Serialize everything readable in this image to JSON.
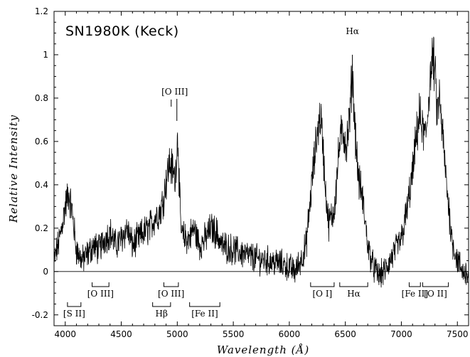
{
  "chart_data": {
    "type": "line",
    "title": "SN1980K (Keck)",
    "xlabel": "Wavelength (Å)",
    "ylabel": "Relative Intensity",
    "xlim": [
      3900,
      7600
    ],
    "ylim": [
      -0.25,
      1.2
    ],
    "xticks": [
      4000,
      4500,
      5000,
      5500,
      6000,
      6500,
      7000,
      7500
    ],
    "yticks": [
      -0.2,
      0,
      0.2,
      0.4,
      0.6,
      0.8,
      1,
      1.2
    ],
    "zero_line": true,
    "grid": false,
    "series": [
      {
        "x": [
          3900,
          3950,
          4000,
          4030,
          4060,
          4100,
          4150,
          4200,
          4250,
          4300,
          4350,
          4400,
          4450,
          4500,
          4550,
          4600,
          4650,
          4700,
          4750,
          4800,
          4850,
          4880,
          4900,
          4930,
          4960,
          4980,
          5000,
          5007,
          5015,
          5030,
          5050,
          5100,
          5150,
          5200,
          5250,
          5300,
          5350,
          5400,
          5500,
          5600,
          5700,
          5800,
          5900,
          6000,
          6050,
          6100,
          6150,
          6200,
          6230,
          6260,
          6280,
          6300,
          6320,
          6350,
          6400,
          6450,
          6480,
          6510,
          6540,
          6563,
          6580,
          6600,
          6620,
          6650,
          6680,
          6700,
          6750,
          6800,
          6850,
          6900,
          6950,
          7000,
          7050,
          7100,
          7130,
          7160,
          7190,
          7220,
          7250,
          7280,
          7300,
          7320,
          7340,
          7370,
          7400,
          7450,
          7500,
          7550,
          7600
        ],
        "y": [
          0.05,
          0.15,
          0.3,
          0.36,
          0.28,
          0.1,
          0.05,
          0.08,
          0.12,
          0.1,
          0.15,
          0.18,
          0.12,
          0.15,
          0.2,
          0.12,
          0.15,
          0.18,
          0.2,
          0.25,
          0.28,
          0.35,
          0.42,
          0.5,
          0.47,
          0.42,
          0.6,
          0.62,
          0.45,
          0.2,
          0.16,
          0.15,
          0.2,
          0.12,
          0.15,
          0.2,
          0.18,
          0.12,
          0.1,
          0.08,
          0.06,
          0.05,
          0.04,
          0.02,
          0.0,
          0.05,
          0.12,
          0.4,
          0.55,
          0.68,
          0.72,
          0.58,
          0.4,
          0.22,
          0.28,
          0.6,
          0.65,
          0.58,
          0.72,
          0.93,
          0.72,
          0.55,
          0.42,
          0.35,
          0.22,
          0.12,
          0.02,
          -0.02,
          0.0,
          0.05,
          0.1,
          0.15,
          0.28,
          0.45,
          0.6,
          0.72,
          0.65,
          0.62,
          0.85,
          0.99,
          0.92,
          0.72,
          0.8,
          0.62,
          0.42,
          0.15,
          0.05,
          0.0,
          -0.02
        ]
      }
    ],
    "annotations": [
      {
        "text": "Hα",
        "x": 6563,
        "line_y": [
          0.94,
          1.0
        ],
        "x_bracket": null,
        "row": "top"
      },
      {
        "text": "[O III]",
        "x": 4990,
        "row": "above-peak"
      },
      {
        "text": "[S II]",
        "x_bracket": [
          4020,
          4140
        ],
        "row": "lower"
      },
      {
        "text": "[O III]",
        "x_bracket": [
          4240,
          4390
        ],
        "row": "upper"
      },
      {
        "text": "[O III]",
        "x_bracket": [
          4880,
          5010
        ],
        "row": "upper"
      },
      {
        "text": "Hβ",
        "x_bracket": [
          4780,
          4940
        ],
        "row": "lower"
      },
      {
        "text": "[Fe II]",
        "x_bracket": [
          5110,
          5380
        ],
        "row": "lower"
      },
      {
        "text": "[O I]",
        "x_bracket": [
          6190,
          6400
        ],
        "row": "upper"
      },
      {
        "text": "Hα",
        "x_bracket": [
          6450,
          6700
        ],
        "row": "upper"
      },
      {
        "text": "[Fe II]",
        "x_bracket": [
          7070,
          7170
        ],
        "row": "upper"
      },
      {
        "text": "[O II]",
        "x_bracket": [
          7190,
          7420
        ],
        "row": "upper"
      }
    ]
  }
}
